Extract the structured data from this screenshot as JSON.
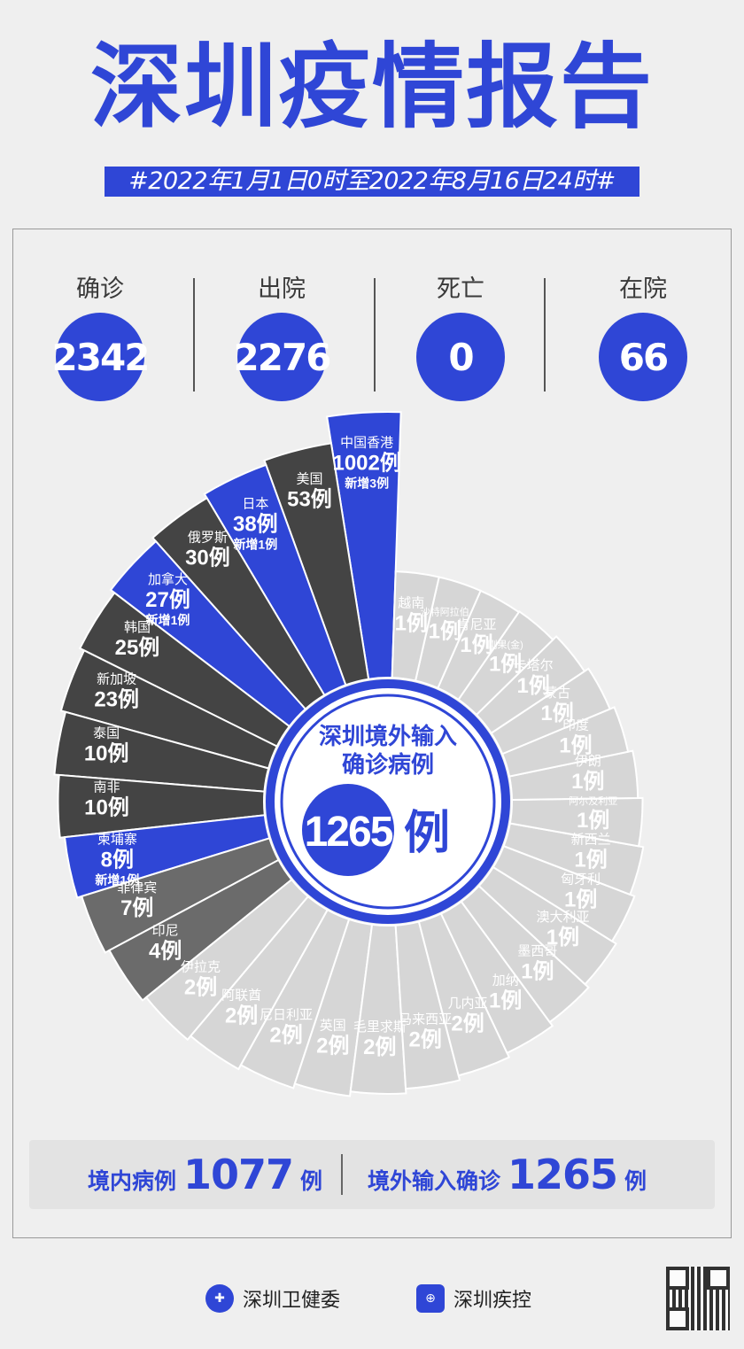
{
  "title": "深圳疫情报告",
  "date_range": "#2022年1月1日0时至2022年8月16日24时#",
  "stats": [
    {
      "label": "确诊",
      "value": "2342"
    },
    {
      "label": "出院",
      "value": "2276"
    },
    {
      "label": "死亡",
      "value": "0"
    },
    {
      "label": "在院",
      "value": "66"
    }
  ],
  "colors": {
    "accent": "#2f46d6",
    "dark": "#444444",
    "mid": "#6b6b6b",
    "light": "#d6d6d6"
  },
  "chart_data": {
    "type": "pie",
    "center_title_1": "深圳境外输入",
    "center_title_2": "确诊病例",
    "center_value": "1265",
    "center_unit": "例",
    "unit": "例",
    "slices": [
      {
        "name": "中国香港",
        "value": 1002,
        "new": "新增3例",
        "tone": "blue"
      },
      {
        "name": "美国",
        "value": 53,
        "tone": "dark"
      },
      {
        "name": "日本",
        "value": 38,
        "new": "新增1例",
        "tone": "blue"
      },
      {
        "name": "俄罗斯",
        "value": 30,
        "tone": "dark"
      },
      {
        "name": "加拿大",
        "value": 27,
        "new": "新增1例",
        "tone": "blue"
      },
      {
        "name": "韩国",
        "value": 25,
        "tone": "dark"
      },
      {
        "name": "新加坡",
        "value": 23,
        "tone": "dark"
      },
      {
        "name": "泰国",
        "value": 10,
        "tone": "dark"
      },
      {
        "name": "南非",
        "value": 10,
        "tone": "dark"
      },
      {
        "name": "柬埔寨",
        "value": 8,
        "new": "新增1例",
        "tone": "blue"
      },
      {
        "name": "菲律宾",
        "value": 7,
        "tone": "mid"
      },
      {
        "name": "印尼",
        "value": 4,
        "tone": "mid"
      },
      {
        "name": "伊拉克",
        "value": 2,
        "tone": "light"
      },
      {
        "name": "阿联酋",
        "value": 2,
        "tone": "light"
      },
      {
        "name": "尼日利亚",
        "value": 2,
        "tone": "light"
      },
      {
        "name": "英国",
        "value": 2,
        "tone": "light"
      },
      {
        "name": "毛里求斯",
        "value": 2,
        "tone": "light"
      },
      {
        "name": "马来西亚",
        "value": 2,
        "tone": "light"
      },
      {
        "name": "几内亚",
        "value": 2,
        "tone": "light"
      },
      {
        "name": "加纳",
        "value": 1,
        "tone": "light"
      },
      {
        "name": "墨西哥",
        "value": 1,
        "tone": "light"
      },
      {
        "name": "澳大利亚",
        "value": 1,
        "tone": "light"
      },
      {
        "name": "匈牙利",
        "value": 1,
        "tone": "light"
      },
      {
        "name": "新西兰",
        "value": 1,
        "tone": "light"
      },
      {
        "name": "阿尔及利亚",
        "value": 1,
        "tone": "light"
      },
      {
        "name": "伊朗",
        "value": 1,
        "tone": "light"
      },
      {
        "name": "印度",
        "value": 1,
        "tone": "light"
      },
      {
        "name": "蒙古",
        "value": 1,
        "tone": "light"
      },
      {
        "name": "卡塔尔",
        "value": 1,
        "tone": "light"
      },
      {
        "name": "刚果(金)",
        "value": 1,
        "tone": "light"
      },
      {
        "name": "肯尼亚",
        "value": 1,
        "tone": "light"
      },
      {
        "name": "沙特阿拉伯",
        "value": 1,
        "tone": "light"
      },
      {
        "name": "越南",
        "value": 1,
        "tone": "light"
      }
    ]
  },
  "summary": {
    "domestic_label": "境内病例",
    "domestic_value": "1077",
    "domestic_unit": "例",
    "imported_label": "境外输入确诊",
    "imported_value": "1265",
    "imported_unit": "例"
  },
  "footer": {
    "org1": "深圳卫健委",
    "org2": "深圳疾控"
  }
}
